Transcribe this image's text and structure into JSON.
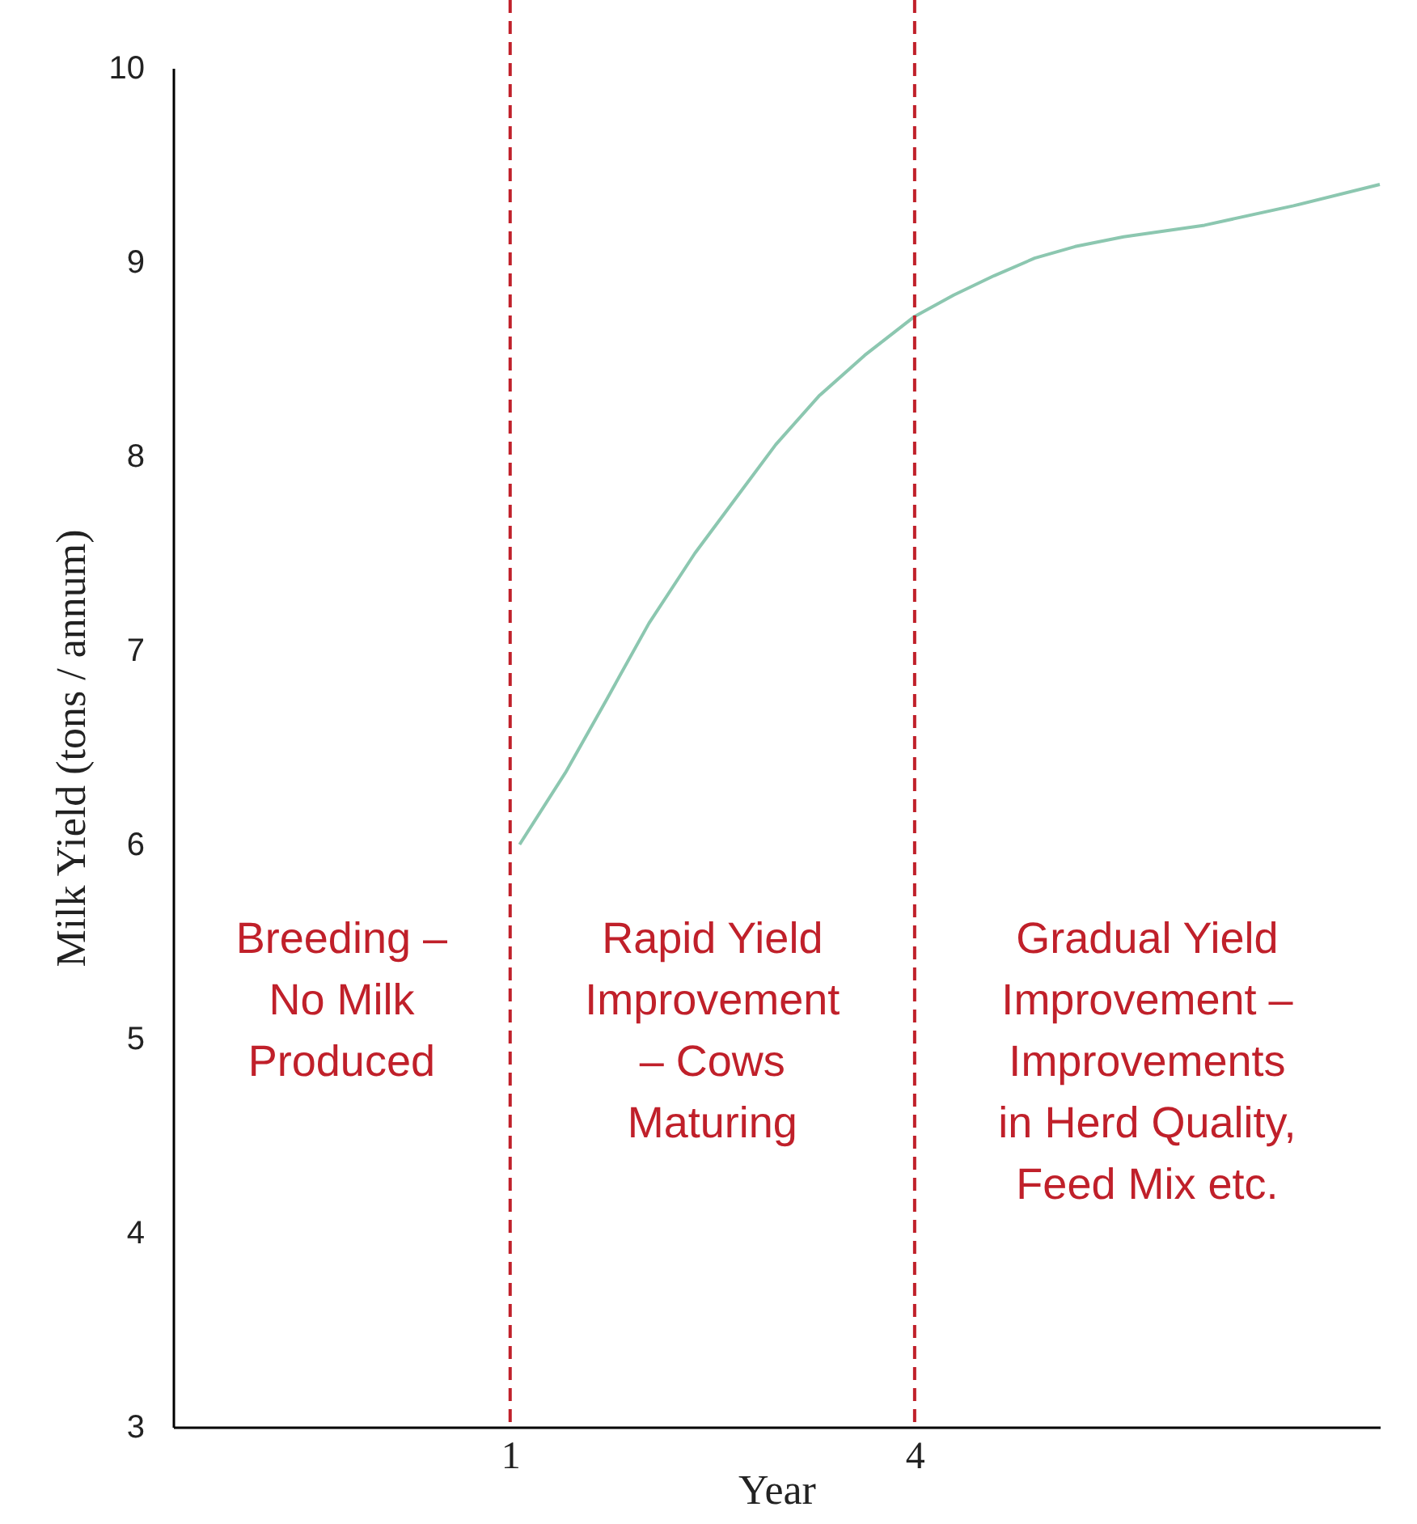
{
  "chart_data": {
    "type": "line",
    "xlabel": "Year",
    "ylabel": "Milk Yield (tons / annum)",
    "x": [
      1.07,
      1.41,
      1.71,
      2.03,
      2.37,
      2.67,
      2.97,
      3.29,
      3.63,
      4.0,
      4.29,
      4.59,
      4.89,
      5.19,
      5.55,
      6.15,
      6.81,
      7.45
    ],
    "series": [
      {
        "color": "#8cc7b0",
        "values": [
          6.0,
          6.37,
          6.74,
          7.14,
          7.5,
          7.78,
          8.06,
          8.31,
          8.52,
          8.72,
          8.83,
          8.93,
          9.02,
          9.08,
          9.13,
          9.19,
          9.29,
          9.4
        ]
      }
    ],
    "xlim": [
      -1.5,
      7.45
    ],
    "xticks": [
      1,
      4
    ],
    "ylim": [
      3,
      10
    ],
    "yticks": [
      3,
      4,
      5,
      6,
      7,
      8,
      9,
      10
    ],
    "grid": false,
    "marker": "none",
    "line_style": "solid",
    "ref_lines": [
      {
        "axis": "x",
        "value": 1,
        "color": "#c0202a",
        "line_style": "dashed"
      },
      {
        "axis": "x",
        "value": 4,
        "color": "#c0202a",
        "line_style": "dashed"
      }
    ],
    "annotations": [
      "Breeding –\nNo Milk\nProduced",
      "Rapid Yield\nImprovement\n– Cows\nMaturing",
      "Gradual Yield\nImprovement –\nImprovements\nin Herd Quality,\nFeed Mix etc."
    ]
  }
}
